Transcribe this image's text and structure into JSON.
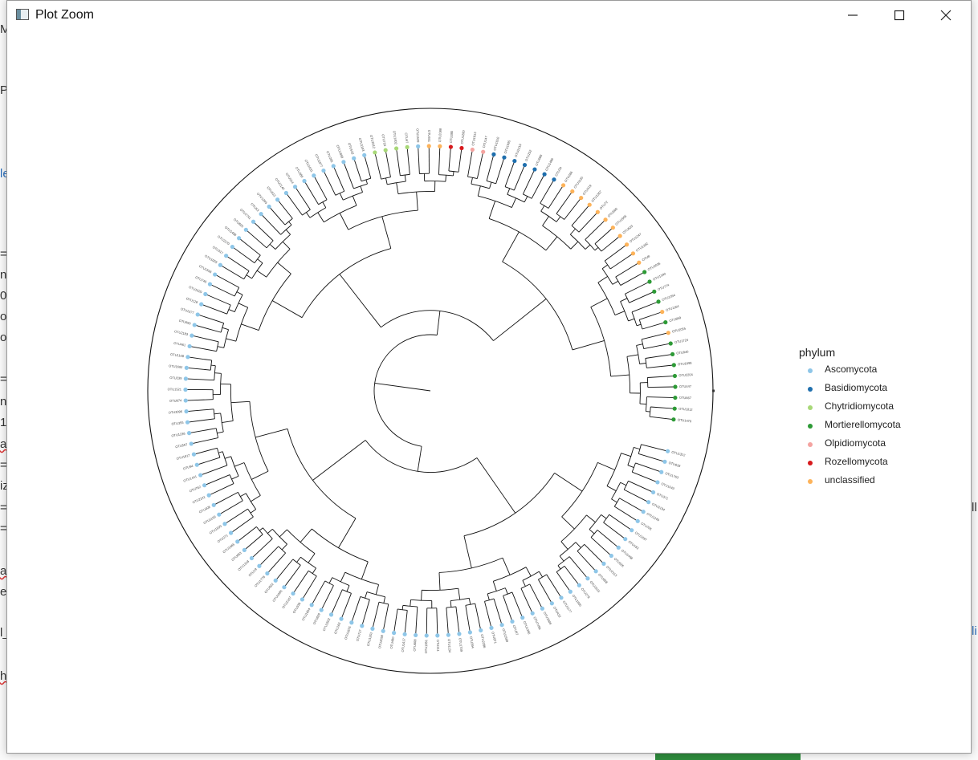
{
  "window": {
    "title": "Plot Zoom",
    "minimize_glyph": "—",
    "maximize_glyph": "☐",
    "close_glyph": "✕"
  },
  "legend": {
    "title": "phylum",
    "items": [
      {
        "label": "Ascomycota",
        "color": "#8ec6e8"
      },
      {
        "label": "Basidiomycota",
        "color": "#1f6fad"
      },
      {
        "label": "Chytridiomycota",
        "color": "#a8d878"
      },
      {
        "label": "Mortierellomycota",
        "color": "#2d9a36"
      },
      {
        "label": "Olpidiomycota",
        "color": "#f4a3a0"
      },
      {
        "label": "Rozellomycota",
        "color": "#d7191c"
      },
      {
        "label": "unclassified",
        "color": "#fdb35a"
      }
    ]
  },
  "tree": {
    "tips": [
      {
        "label": "OTU1470",
        "phylum": "Mortierellomycota"
      },
      {
        "label": "OTU1812",
        "phylum": "Mortierellomycota"
      },
      {
        "label": "OTU667",
        "phylum": "Mortierellomycota"
      },
      {
        "label": "OTU447",
        "phylum": "Mortierellomycota"
      },
      {
        "label": "OTU2204",
        "phylum": "Mortierellomycota"
      },
      {
        "label": "OTU1698",
        "phylum": "Mortierellomycota"
      },
      {
        "label": "OTU940",
        "phylum": "Mortierellomycota"
      },
      {
        "label": "OTU1724",
        "phylum": "Mortierellomycota"
      },
      {
        "label": "OTU2055",
        "phylum": "unclassified"
      },
      {
        "label": "OTU859",
        "phylum": "Mortierellomycota"
      },
      {
        "label": "OTU1164",
        "phylum": "unclassified"
      },
      {
        "label": "OTU1054",
        "phylum": "Mortierellomycota"
      },
      {
        "label": "OTU774",
        "phylum": "Mortierellomycota"
      },
      {
        "label": "OTU1340",
        "phylum": "Mortierellomycota"
      },
      {
        "label": "OTU2035",
        "phylum": "Mortierellomycota"
      },
      {
        "label": "OTU8",
        "phylum": "unclassified"
      },
      {
        "label": "OTU1392",
        "phylum": "unclassified"
      },
      {
        "label": "OTU1247",
        "phylum": "unclassified"
      },
      {
        "label": "OTU633",
        "phylum": "unclassified"
      },
      {
        "label": "OTU1905",
        "phylum": "unclassified"
      },
      {
        "label": "OTU566",
        "phylum": "unclassified"
      },
      {
        "label": "OTU72",
        "phylum": "unclassified"
      },
      {
        "label": "OTU1357",
        "phylum": "unclassified"
      },
      {
        "label": "OTU419",
        "phylum": "unclassified"
      },
      {
        "label": "OTU1120",
        "phylum": "unclassified"
      },
      {
        "label": "OTU286",
        "phylum": "unclassified"
      },
      {
        "label": "OTU34",
        "phylum": "Basidiomycota"
      },
      {
        "label": "OTU1486",
        "phylum": "Basidiomycota"
      },
      {
        "label": "OTU988",
        "phylum": "Basidiomycota"
      },
      {
        "label": "OTU252",
        "phylum": "Basidiomycota"
      },
      {
        "label": "OTU2219",
        "phylum": "Basidiomycota"
      },
      {
        "label": "OTU1605",
        "phylum": "Basidiomycota"
      },
      {
        "label": "OTU1010",
        "phylum": "Basidiomycota"
      },
      {
        "label": "OTU147",
        "phylum": "Olpidiomycota"
      },
      {
        "label": "OTU1913",
        "phylum": "Olpidiomycota"
      },
      {
        "label": "OTU1280",
        "phylum": "Rozellomycota"
      },
      {
        "label": "OTU380",
        "phylum": "Rozellomycota"
      },
      {
        "label": "OTU2088",
        "phylum": "unclassified"
      },
      {
        "label": "OTU651",
        "phylum": "unclassified"
      },
      {
        "label": "OTU1539",
        "phylum": "Ascomycota"
      },
      {
        "label": "OTU47",
        "phylum": "Chytridiomycota"
      },
      {
        "label": "OTU1402",
        "phylum": "Chytridiomycota"
      },
      {
        "label": "OTU716",
        "phylum": "Chytridiomycota"
      },
      {
        "label": "OTU2012",
        "phylum": "Chytridiomycota"
      },
      {
        "label": "OTU1193",
        "phylum": "Ascomycota"
      },
      {
        "label": "OTU532",
        "phylum": "Ascomycota"
      },
      {
        "label": "OTU1858",
        "phylum": "Ascomycota"
      },
      {
        "label": "OTU205",
        "phylum": "Ascomycota"
      },
      {
        "label": "OTU1077",
        "phylum": "Ascomycota"
      },
      {
        "label": "OTU1631",
        "phylum": "Ascomycota"
      },
      {
        "label": "OTU389",
        "phylum": "Ascomycota"
      },
      {
        "label": "OTU914",
        "phylum": "Ascomycota"
      },
      {
        "label": "OTU2140",
        "phylum": "Ascomycota"
      },
      {
        "label": "OTU612",
        "phylum": "Ascomycota"
      },
      {
        "label": "OTU1295",
        "phylum": "Ascomycota"
      },
      {
        "label": "OTU53",
        "phylum": "Ascomycota"
      },
      {
        "label": "OTU1741",
        "phylum": "Ascomycota"
      },
      {
        "label": "OTU826",
        "phylum": "Ascomycota"
      },
      {
        "label": "OTU1458",
        "phylum": "Ascomycota"
      },
      {
        "label": "OTU2270",
        "phylum": "Ascomycota"
      },
      {
        "label": "OTU317",
        "phylum": "Ascomycota"
      },
      {
        "label": "OTU1003",
        "phylum": "Ascomycota"
      },
      {
        "label": "OTU1566",
        "phylum": "Ascomycota"
      },
      {
        "label": "OTU745",
        "phylum": "Ascomycota"
      },
      {
        "label": "OTU1929",
        "phylum": "Ascomycota"
      },
      {
        "label": "OTU128",
        "phylum": "Ascomycota"
      },
      {
        "label": "OTU1377",
        "phylum": "Ascomycota"
      },
      {
        "label": "OTU690",
        "phylum": "Ascomycota"
      },
      {
        "label": "OTU2183",
        "phylum": "Ascomycota"
      },
      {
        "label": "OTU461",
        "phylum": "Ascomycota"
      },
      {
        "label": "OTU1108",
        "phylum": "Ascomycota"
      },
      {
        "label": "OTU1682",
        "phylum": "Ascomycota"
      },
      {
        "label": "OTU239",
        "phylum": "Ascomycota"
      },
      {
        "label": "OTU1521",
        "phylum": "Ascomycota"
      },
      {
        "label": "OTU874",
        "phylum": "Ascomycota"
      },
      {
        "label": "OTU2096",
        "phylum": "Ascomycota"
      },
      {
        "label": "OTU355",
        "phylum": "Ascomycota"
      },
      {
        "label": "OTU1236",
        "phylum": "Ascomycota"
      },
      {
        "label": "OTU597",
        "phylum": "Ascomycota"
      },
      {
        "label": "OTU1817",
        "phylum": "Ascomycota"
      },
      {
        "label": "OTU94",
        "phylum": "Ascomycota"
      },
      {
        "label": "OTU1441",
        "phylum": "Ascomycota"
      },
      {
        "label": "OTU762",
        "phylum": "Ascomycota"
      },
      {
        "label": "OTU2241",
        "phylum": "Ascomycota"
      },
      {
        "label": "OTU408",
        "phylum": "Ascomycota"
      },
      {
        "label": "OTU1150",
        "phylum": "Ascomycota"
      },
      {
        "label": "OTU1599",
        "phylum": "Ascomycota"
      },
      {
        "label": "OTU271",
        "phylum": "Ascomycota"
      },
      {
        "label": "OTU1965",
        "phylum": "Ascomycota"
      },
      {
        "label": "OTU683",
        "phylum": "Ascomycota"
      },
      {
        "label": "OTU1318",
        "phylum": "Ascomycota"
      },
      {
        "label": "OTU19",
        "phylum": "Ascomycota"
      },
      {
        "label": "OTU1778",
        "phylum": "Ascomycota"
      },
      {
        "label": "OTU502",
        "phylum": "Ascomycota"
      },
      {
        "label": "OTU1085",
        "phylum": "Ascomycota"
      },
      {
        "label": "OTU2167",
        "phylum": "Ascomycota"
      },
      {
        "label": "OTU336",
        "phylum": "Ascomycota"
      },
      {
        "label": "OTU1654",
        "phylum": "Ascomycota"
      },
      {
        "label": "OTU829",
        "phylum": "Ascomycota"
      },
      {
        "label": "OTU1502",
        "phylum": "Ascomycota"
      },
      {
        "label": "OTU163",
        "phylum": "Ascomycota"
      },
      {
        "label": "OTU1876",
        "phylum": "Ascomycota"
      },
      {
        "label": "OTU727",
        "phylum": "Ascomycota"
      },
      {
        "label": "OTU1263",
        "phylum": "Ascomycota"
      },
      {
        "label": "OTU2058",
        "phylum": "Ascomycota"
      },
      {
        "label": "OTU480",
        "phylum": "Ascomycota"
      },
      {
        "label": "OTU1417",
        "phylum": "Ascomycota"
      },
      {
        "label": "OTU608",
        "phylum": "Ascomycota"
      },
      {
        "label": "OTU1951",
        "phylum": "Ascomycota"
      },
      {
        "label": "OTU211",
        "phylum": "Ascomycota"
      },
      {
        "label": "OTU1134",
        "phylum": "Ascomycota"
      },
      {
        "label": "OTU1709",
        "phylum": "Ascomycota"
      },
      {
        "label": "OTU394",
        "phylum": "Ascomycota"
      },
      {
        "label": "OTU2286",
        "phylum": "Ascomycota"
      },
      {
        "label": "OTU871",
        "phylum": "Ascomycota"
      },
      {
        "label": "OTU1588",
        "phylum": "Ascomycota"
      },
      {
        "label": "OTU57",
        "phylum": "Ascomycota"
      },
      {
        "label": "OTU1360",
        "phylum": "Ascomycota"
      },
      {
        "label": "OTU745b",
        "phylum": "Ascomycota"
      },
      {
        "label": "OTU2009",
        "phylum": "Ascomycota"
      },
      {
        "label": "OTU432",
        "phylum": "Ascomycota"
      },
      {
        "label": "OTU1177",
        "phylum": "Ascomycota"
      },
      {
        "label": "OTU1830",
        "phylum": "Ascomycota"
      },
      {
        "label": "OTU279",
        "phylum": "Ascomycota"
      },
      {
        "label": "OTU1615",
        "phylum": "Ascomycota"
      },
      {
        "label": "OTU958",
        "phylum": "Ascomycota"
      },
      {
        "label": "OTU2113",
        "phylum": "Ascomycota"
      },
      {
        "label": "OTU526",
        "phylum": "Ascomycota"
      },
      {
        "label": "OTU1468",
        "phylum": "Ascomycota"
      },
      {
        "label": "OTU183",
        "phylum": "Ascomycota"
      },
      {
        "label": "OTU1897",
        "phylum": "Ascomycota"
      },
      {
        "label": "OTU705",
        "phylum": "Ascomycota"
      },
      {
        "label": "OTU1249",
        "phylum": "Ascomycota"
      },
      {
        "label": "OTU2194",
        "phylum": "Ascomycota"
      },
      {
        "label": "OTU371",
        "phylum": "Ascomycota"
      },
      {
        "label": "OTU1043",
        "phylum": "Ascomycota"
      },
      {
        "label": "OTU1763",
        "phylum": "Ascomycota"
      },
      {
        "label": "OTU618",
        "phylum": "Ascomycota"
      },
      {
        "label": "OTU1322",
        "phylum": "Ascomycota"
      }
    ]
  }
}
